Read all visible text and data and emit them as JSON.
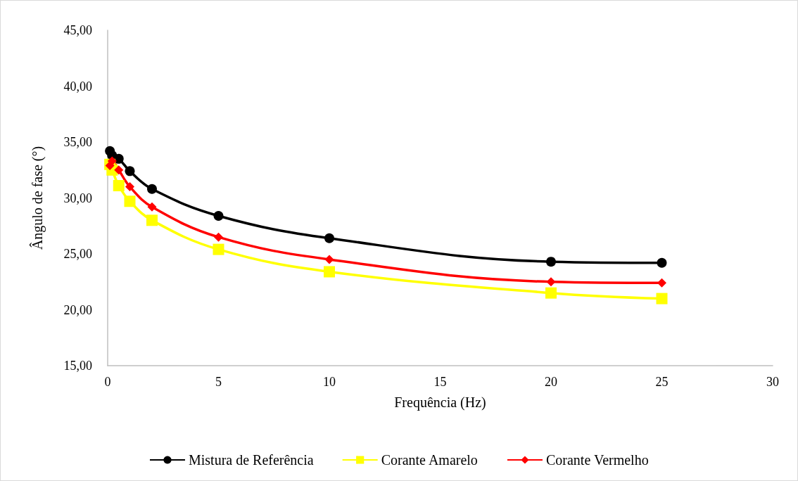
{
  "chart_data": {
    "type": "line",
    "xlabel": "Frequência (Hz)",
    "ylabel": "Ângulo de fase (°)",
    "x": [
      0.1,
      0.2,
      0.5,
      1,
      2,
      5,
      10,
      20,
      25
    ],
    "series": [
      {
        "name": "Mistura de Referência",
        "color": "#000000",
        "marker": "circle",
        "values": [
          34.2,
          33.8,
          33.5,
          32.4,
          30.8,
          28.4,
          26.4,
          24.3,
          24.2
        ]
      },
      {
        "name": "Corante Amarelo",
        "color": "#ffff00",
        "marker": "square",
        "values": [
          33.0,
          32.5,
          31.1,
          29.7,
          28.0,
          25.4,
          23.4,
          21.5,
          21.0
        ]
      },
      {
        "name": "Corante Vermelho",
        "color": "#ff0000",
        "marker": "diamond",
        "values": [
          32.9,
          33.3,
          32.5,
          31.0,
          29.2,
          26.5,
          24.5,
          22.5,
          22.4
        ]
      }
    ],
    "xlim": [
      0,
      30
    ],
    "xticks": [
      0,
      5,
      10,
      15,
      20,
      25,
      30
    ],
    "ylim": [
      15,
      45
    ],
    "yticks": [
      {
        "value": 15,
        "label": "15,00"
      },
      {
        "value": 20,
        "label": "20,00"
      },
      {
        "value": 25,
        "label": "25,00"
      },
      {
        "value": 30,
        "label": "30,00"
      },
      {
        "value": 35,
        "label": "35,00"
      },
      {
        "value": 40,
        "label": "40,00"
      },
      {
        "value": 45,
        "label": "45,00"
      }
    ],
    "grid": false,
    "legend": "bottom",
    "line_style": "solid"
  }
}
